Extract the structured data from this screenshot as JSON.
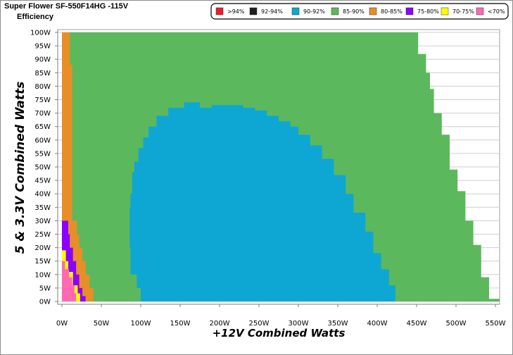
{
  "chart_data": {
    "type": "heatmap",
    "title": "Super Flower SF-550F14HG -115V",
    "subtitle": "Efficiency",
    "xlabel": "+12V Combined Watts",
    "ylabel": "5 & 3.3V Combined Watts",
    "x_range": [
      0,
      550
    ],
    "y_range": [
      0,
      100
    ],
    "x_ticks": [
      "0W",
      "50W",
      "100W",
      "150W",
      "200W",
      "250W",
      "300W",
      "350W",
      "400W",
      "450W",
      "500W",
      "550W"
    ],
    "y_ticks": [
      "0W",
      "5W",
      "10W",
      "15W",
      "20W",
      "25W",
      "30W",
      "35W",
      "40W",
      "45W",
      "50W",
      "55W",
      "60W",
      "65W",
      "70W",
      "75W",
      "80W",
      "85W",
      "90W",
      "95W",
      "100W"
    ],
    "legend": [
      {
        "label": ">94%",
        "color": "#e8202a"
      },
      {
        "label": "92-94%",
        "color": "#1f1f1f"
      },
      {
        "label": "90-92%",
        "color": "#0ea7d4"
      },
      {
        "label": "85-90%",
        "color": "#5cb85c"
      },
      {
        "label": "80-85%",
        "color": "#e88e26"
      },
      {
        "label": "75-80%",
        "color": "#8b00ff"
      },
      {
        "label": "70-75%",
        "color": "#ffff00"
      },
      {
        "label": "<70%",
        "color": "#ff69b4"
      }
    ],
    "load_limit_boundary": [
      [
        452,
        100
      ],
      [
        452,
        92
      ],
      [
        462,
        92
      ],
      [
        462,
        85
      ],
      [
        467,
        85
      ],
      [
        467,
        79
      ],
      [
        472,
        79
      ],
      [
        472,
        70
      ],
      [
        482,
        70
      ],
      [
        482,
        62
      ],
      [
        492,
        62
      ],
      [
        492,
        49
      ],
      [
        502,
        49
      ],
      [
        502,
        41
      ],
      [
        512,
        41
      ],
      [
        512,
        30
      ],
      [
        522,
        30
      ],
      [
        522,
        21
      ],
      [
        532,
        21
      ],
      [
        532,
        9
      ],
      [
        542,
        9
      ],
      [
        542,
        1
      ],
      [
        555,
        1
      ],
      [
        555,
        0
      ]
    ],
    "regions": {
      "85-90%": "fills the rest of the load range",
      "90-92%": {
        "boundary": [
          [
            100,
            0
          ],
          [
            100,
            5
          ],
          [
            95,
            5
          ],
          [
            95,
            10
          ],
          [
            87,
            10
          ],
          [
            87,
            20
          ],
          [
            86,
            20
          ],
          [
            86,
            35
          ],
          [
            87,
            35
          ],
          [
            87,
            40
          ],
          [
            89,
            40
          ],
          [
            89,
            48
          ],
          [
            92,
            48
          ],
          [
            92,
            52
          ],
          [
            97,
            52
          ],
          [
            97,
            57
          ],
          [
            103,
            57
          ],
          [
            103,
            61
          ],
          [
            110,
            61
          ],
          [
            110,
            65
          ],
          [
            120,
            65
          ],
          [
            120,
            69
          ],
          [
            135,
            69
          ],
          [
            135,
            72
          ],
          [
            155,
            72
          ],
          [
            155,
            74
          ],
          [
            175,
            74
          ],
          [
            175,
            72
          ],
          [
            190,
            72
          ],
          [
            190,
            73
          ],
          [
            230,
            73
          ],
          [
            230,
            72
          ],
          [
            245,
            72
          ],
          [
            245,
            71
          ],
          [
            260,
            71
          ],
          [
            260,
            69
          ],
          [
            275,
            69
          ],
          [
            275,
            67
          ],
          [
            290,
            67
          ],
          [
            290,
            65
          ],
          [
            300,
            65
          ],
          [
            300,
            62
          ],
          [
            315,
            62
          ],
          [
            315,
            58
          ],
          [
            330,
            58
          ],
          [
            330,
            53
          ],
          [
            345,
            53
          ],
          [
            345,
            47
          ],
          [
            360,
            47
          ],
          [
            360,
            40
          ],
          [
            370,
            40
          ],
          [
            370,
            33
          ],
          [
            385,
            33
          ],
          [
            385,
            26
          ],
          [
            395,
            26
          ],
          [
            395,
            18
          ],
          [
            405,
            18
          ],
          [
            405,
            12
          ],
          [
            415,
            12
          ],
          [
            415,
            6
          ],
          [
            423,
            6
          ],
          [
            423,
            0
          ]
        ]
      },
      "80-85%": {
        "boundary": [
          [
            0,
            0
          ],
          [
            0,
            100
          ],
          [
            10,
            100
          ],
          [
            10,
            88
          ],
          [
            13,
            88
          ],
          [
            13,
            0
          ]
        ]
      },
      "80-85%_lower": {
        "boundary": [
          [
            13,
            0
          ],
          [
            13,
            30
          ],
          [
            19,
            30
          ],
          [
            19,
            25
          ],
          [
            22,
            25
          ],
          [
            22,
            20
          ],
          [
            26,
            20
          ],
          [
            26,
            15
          ],
          [
            30,
            15
          ],
          [
            30,
            10
          ],
          [
            35,
            10
          ],
          [
            35,
            5
          ],
          [
            40,
            5
          ],
          [
            40,
            0
          ]
        ]
      },
      "75-80%": {
        "boundary": [
          [
            0,
            0
          ],
          [
            0,
            30
          ],
          [
            8,
            30
          ],
          [
            8,
            25
          ],
          [
            10,
            25
          ],
          [
            10,
            20
          ],
          [
            14,
            20
          ],
          [
            14,
            15
          ],
          [
            18,
            15
          ],
          [
            18,
            10
          ],
          [
            22,
            10
          ],
          [
            22,
            5
          ],
          [
            26,
            5
          ],
          [
            26,
            2
          ],
          [
            30,
            2
          ],
          [
            30,
            0
          ]
        ]
      },
      "70-75%": {
        "boundary": [
          [
            0,
            0
          ],
          [
            0,
            19
          ],
          [
            5,
            19
          ],
          [
            5,
            15
          ],
          [
            8,
            15
          ],
          [
            8,
            11
          ],
          [
            14,
            11
          ],
          [
            14,
            6
          ],
          [
            20,
            6
          ],
          [
            20,
            3
          ],
          [
            23,
            3
          ],
          [
            23,
            0
          ]
        ]
      },
      "<70%": {
        "boundary": [
          [
            0,
            0
          ],
          [
            0,
            15
          ],
          [
            4,
            15
          ],
          [
            4,
            12
          ],
          [
            9,
            12
          ],
          [
            9,
            9
          ],
          [
            13,
            9
          ],
          [
            13,
            6
          ],
          [
            16,
            6
          ],
          [
            16,
            3
          ],
          [
            18,
            3
          ],
          [
            18,
            0
          ]
        ]
      }
    }
  }
}
